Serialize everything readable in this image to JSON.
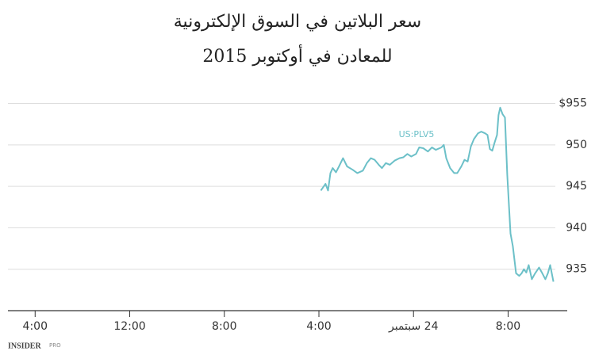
{
  "chart_data": {
    "type": "line",
    "title": "سعر البلاتين في السوق الإلكترونية",
    "subtitle": "للمعادن في أوكتوبر 2015",
    "x": [
      24.16,
      24.36,
      24.56,
      24.77,
      24.97,
      25.17,
      25.44,
      25.7,
      26.04,
      26.38,
      26.85,
      27.25,
      27.72,
      28.05,
      28.39,
      28.72,
      29.06,
      29.33,
      29.66,
      30.0,
      30.4,
      30.81,
      31.14,
      31.48,
      31.81,
      32.21,
      32.48,
      32.82,
      33.22,
      33.56,
      33.89,
      34.36,
      34.56,
      34.77,
      35.1,
      35.44,
      35.7,
      36.04,
      36.31,
      36.58,
      36.85,
      37.11,
      37.45,
      37.72,
      38.05,
      38.26,
      38.46,
      38.66,
      38.86,
      39.06,
      39.19,
      39.33,
      39.53,
      39.73,
      39.93,
      40.2,
      40.4,
      40.67,
      40.94,
      41.14,
      41.34,
      41.54,
      41.74,
      42.01,
      42.28,
      42.62,
      42.89,
      43.15,
      43.36,
      43.56,
      43.83
    ],
    "series": [
      {
        "name": "US:PLV5",
        "color": "#6cc0c8",
        "values": [
          944.5,
          944.9,
          945.3,
          944.5,
          946.6,
          947.2,
          946.7,
          947.4,
          948.4,
          947.4,
          947.0,
          946.6,
          946.9,
          947.8,
          948.4,
          948.2,
          947.6,
          947.2,
          947.8,
          947.6,
          948.1,
          948.4,
          948.5,
          948.9,
          948.6,
          948.9,
          949.7,
          949.6,
          949.2,
          949.7,
          949.4,
          949.7,
          950.0,
          948.4,
          947.2,
          946.6,
          946.6,
          947.4,
          948.2,
          948.0,
          949.8,
          950.7,
          951.4,
          951.6,
          951.4,
          951.2,
          949.5,
          949.3,
          950.3,
          951.2,
          953.6,
          954.5,
          953.7,
          953.3,
          946.4,
          939.3,
          937.8,
          934.5,
          934.2,
          934.5,
          935.0,
          934.6,
          935.5,
          933.8,
          934.5,
          935.2,
          934.5,
          933.8,
          934.5,
          935.5,
          933.5
        ]
      }
    ],
    "xlim": [
      -2.3,
      45
    ],
    "xticks": [
      {
        "value": 0,
        "label": "4:00"
      },
      {
        "value": 8,
        "label": "12:00"
      },
      {
        "value": 16,
        "label": "8:00"
      },
      {
        "value": 24,
        "label": "4:00"
      },
      {
        "value": 32,
        "label": "24 سبتمبر"
      },
      {
        "value": 40,
        "label": "8:00"
      }
    ],
    "ylim": [
      930,
      956.2
    ],
    "yticks": [
      935,
      940,
      945,
      950,
      {
        "value": 955,
        "label": "$955"
      }
    ],
    "grid": true,
    "logo": "INSIDER",
    "logo_suffix": "PRO"
  }
}
